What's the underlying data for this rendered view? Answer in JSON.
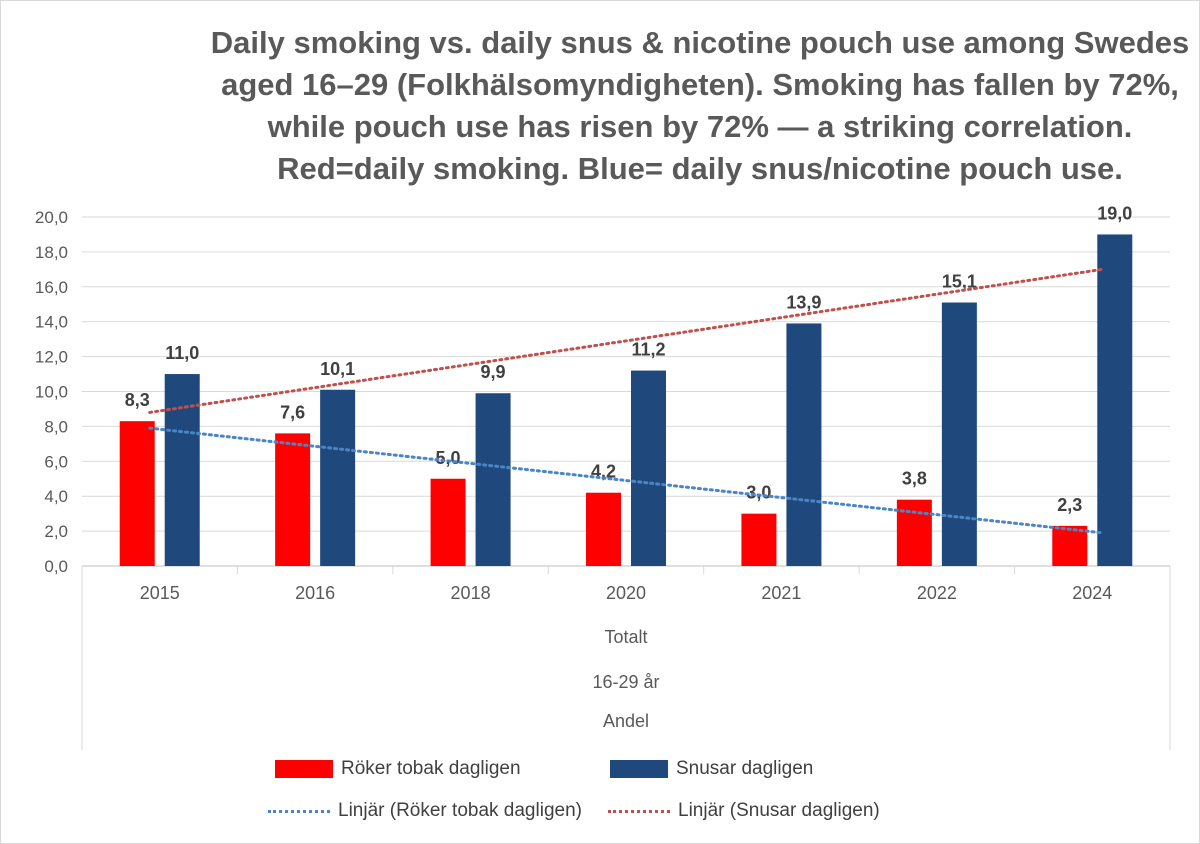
{
  "chart_data": {
    "type": "bar",
    "title_lines": [
      "Daily smoking vs. daily snus & nicotine pouch use among Swedes",
      "aged 16–29 (Folkhälsomyndigheten). Smoking has fallen by 72%,",
      "while pouch use has risen by 72% — a striking correlation.",
      "Red=daily smoking. Blue= daily snus/nicotine pouch use."
    ],
    "categories": [
      "2015",
      "2016",
      "2018",
      "2020",
      "2021",
      "2022",
      "2024"
    ],
    "xlabel_lines": [
      "Totalt",
      "16-29 år",
      "Andel"
    ],
    "ylim": [
      0,
      20
    ],
    "yticks": [
      "0,0",
      "2,0",
      "4,0",
      "6,0",
      "8,0",
      "10,0",
      "12,0",
      "14,0",
      "16,0",
      "18,0",
      "20,0"
    ],
    "grid": true,
    "series": [
      {
        "name": "Röker tobak dagligen",
        "color": "#ff0000",
        "values": [
          8.3,
          7.6,
          5.0,
          4.2,
          3.0,
          3.8,
          2.3
        ],
        "labels": [
          "8,3",
          "7,6",
          "5,0",
          "4,2",
          "3,0",
          "3,8",
          "2,3"
        ]
      },
      {
        "name": "Snusar dagligen",
        "color": "#1f497d",
        "values": [
          11.0,
          10.1,
          9.9,
          11.2,
          13.9,
          15.1,
          19.0
        ],
        "labels": [
          "11,0",
          "10,1",
          "9,9",
          "11,2",
          "13,9",
          "15,1",
          "19,0"
        ]
      }
    ],
    "trendlines": [
      {
        "name": "Linjär (Röker tobak dagligen)",
        "color": "#4a86c5",
        "start": 7.9,
        "end": 1.9
      },
      {
        "name": "Linjär (Snusar dagligen)",
        "color": "#c0504d",
        "start": 8.8,
        "end": 17.0
      }
    ],
    "legend_position": "bottom"
  }
}
